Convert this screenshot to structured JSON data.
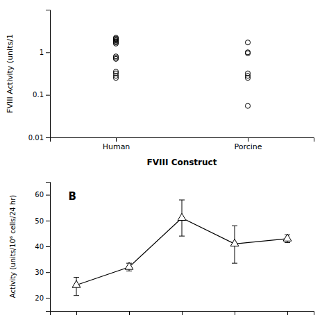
{
  "chart_data": [
    {
      "type": "scatter",
      "x_label": "FVIII Construct",
      "y_label": "FVIII Activity (units/1",
      "categories": [
        "Human",
        "Porcine"
      ],
      "values": [
        [
          2.2,
          2.1,
          2.0,
          1.9,
          1.8,
          1.7,
          1.6,
          0.8,
          0.75,
          0.7,
          0.35,
          0.32,
          0.28,
          0.25
        ],
        [
          1.7,
          1.0,
          0.95,
          0.32,
          0.28,
          0.25,
          0.055
        ]
      ],
      "color": "#000000",
      "marker": "circle",
      "log": "y",
      "ylim": [
        0.01,
        10
      ],
      "yticks": [
        0.01,
        0.1,
        1
      ]
    },
    {
      "type": "line",
      "y_label": "Activity (units/10⁶ cells/24 hr)",
      "annotations": [
        "B"
      ],
      "x": [
        1,
        2,
        3,
        4,
        5
      ],
      "values": [
        25,
        32,
        51,
        41,
        43
      ],
      "error_low": [
        4,
        1.5,
        7,
        7.5,
        1.5
      ],
      "error_high": [
        3,
        1.5,
        7,
        7,
        1.5
      ],
      "color": "#000000",
      "marker": "triangle",
      "line_style": "solid",
      "xlim": [
        0.5,
        5.5
      ],
      "xticks": [
        1,
        2,
        3,
        4,
        5
      ],
      "ylim": [
        15,
        65
      ],
      "yticks": [
        20,
        30,
        40,
        50,
        60
      ],
      "tick_labels": "y"
    }
  ]
}
